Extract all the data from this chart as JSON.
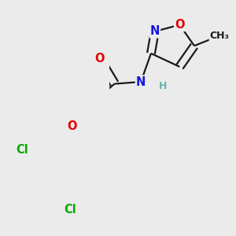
{
  "bg_color": "#ebebeb",
  "bond_color": "#1a1a1a",
  "bond_width": 1.6,
  "atom_colors": {
    "O": "#e00000",
    "N": "#1414e0",
    "Cl": "#00aa00",
    "C": "#1a1a1a",
    "H": "#6ab0b0"
  },
  "font_size": 10.5
}
